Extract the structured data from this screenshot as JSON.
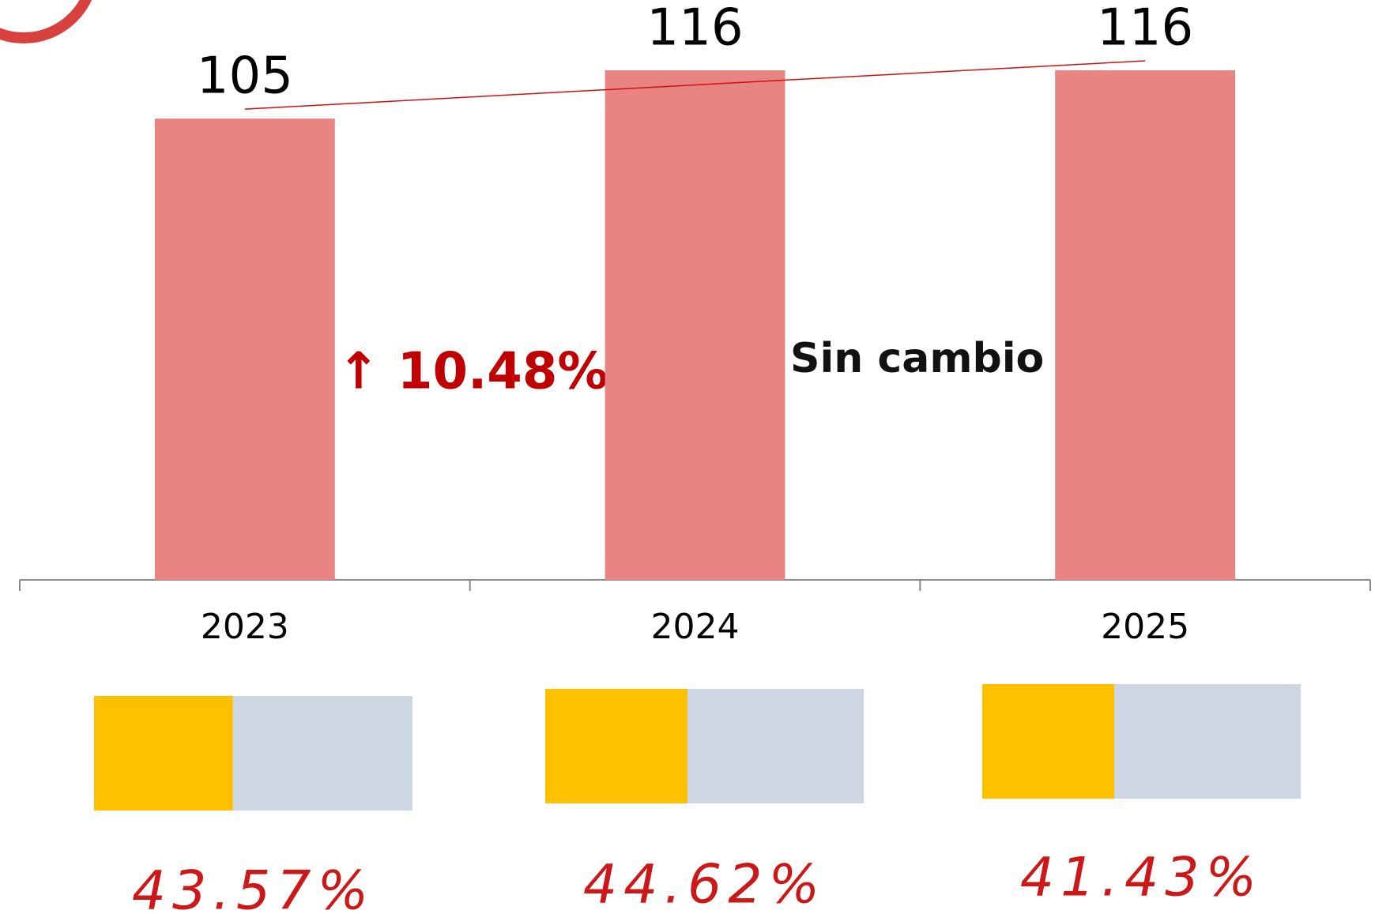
{
  "chart_data": {
    "type": "bar",
    "categories": [
      "2023",
      "2024",
      "2025"
    ],
    "values": [
      105,
      116,
      116
    ],
    "color": "#e88482",
    "ylim": [
      0,
      132
    ],
    "annotations": [
      "↑ 10.48%",
      "Sin cambio"
    ],
    "share": {
      "values": [
        43.57,
        44.62,
        41.43
      ],
      "value_labels": [
        "43.57%",
        "44.62%",
        "41.43%"
      ],
      "xlim": [
        0,
        100
      ],
      "color": "#ffc000",
      "rest_color": "#cdd7e4"
    }
  }
}
